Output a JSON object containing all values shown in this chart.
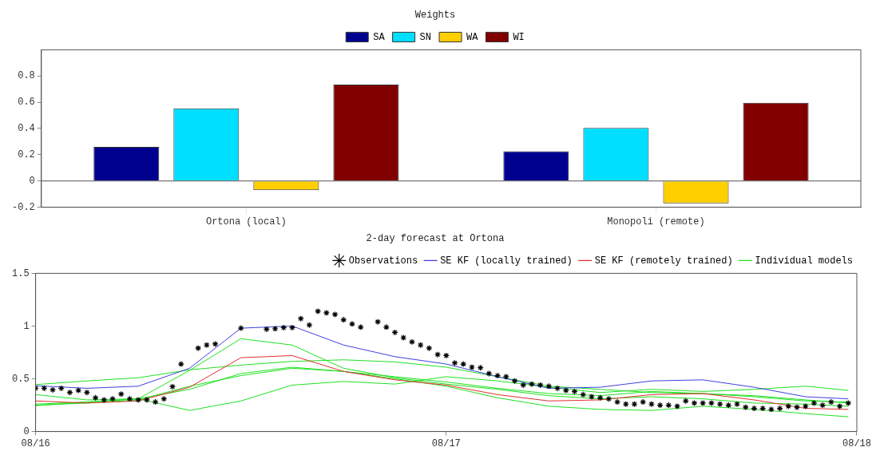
{
  "chart_data": [
    {
      "type": "bar",
      "title": "Weights",
      "categories": [
        "Ortona (local)",
        "Monopoli (remote)"
      ],
      "series": [
        {
          "name": "SA",
          "color": "#00008f",
          "values": [
            0.26,
            0.227
          ]
        },
        {
          "name": "SN",
          "color": "#00dfff",
          "values": [
            0.554,
            0.404
          ]
        },
        {
          "name": "WA",
          "color": "#ffcf00",
          "values": [
            -0.07,
            -0.17
          ]
        },
        {
          "name": "WI",
          "color": "#800000",
          "values": [
            0.735,
            0.596
          ]
        }
      ],
      "ylim": [
        -0.2,
        1.0
      ],
      "yticks": [
        -0.2,
        0,
        0.2,
        0.4,
        0.6,
        0.8
      ],
      "legend": "top"
    },
    {
      "type": "line",
      "title": "2-day forecast at Ortona",
      "xlim": [
        "--08-16",
        "--08-18"
      ],
      "xticks": [
        {
          "value": "--08-16",
          "label": "08/16"
        },
        {
          "value": "--08-17",
          "label": "08/17"
        },
        {
          "value": "--08-18",
          "label": "08/18"
        }
      ],
      "ylim": [
        0,
        1.5
      ],
      "yticks": [
        0,
        0.5,
        1,
        1.5
      ],
      "legend": "top right",
      "series": [
        {
          "name": "Observations",
          "type": "scatter",
          "marker": "cross",
          "color": "#000000",
          "x": [
            "--08-16T00:00",
            "--08-16T00:30",
            "--08-16T01:00",
            "--08-16T01:30",
            "--08-16T02:00",
            "--08-16T02:30",
            "--08-16T03:00",
            "--08-16T03:30",
            "--08-16T04:00",
            "--08-16T04:30",
            "--08-16T05:00",
            "--08-16T05:30",
            "--08-16T06:00",
            "--08-16T06:30",
            "--08-16T07:00",
            "--08-16T07:30",
            "--08-16T08:00",
            "--08-16T08:30",
            "--08-16T09:30",
            "--08-16T10:00",
            "--08-16T10:30",
            "--08-16T12:00",
            "--08-16T13:30",
            "--08-16T14:00",
            "--08-16T14:30",
            "--08-16T15:00",
            "--08-16T15:30",
            "--08-16T16:00",
            "--08-16T16:30",
            "--08-16T17:00",
            "--08-16T17:30",
            "--08-16T18:00",
            "--08-16T18:30",
            "--08-16T19:00",
            "--08-16T20:00",
            "--08-16T20:30",
            "--08-16T21:00",
            "--08-16T21:30",
            "--08-16T22:00",
            "--08-16T22:30",
            "--08-16T23:00",
            "--08-16T23:30",
            "--08-17T00:00",
            "--08-17T00:30",
            "--08-17T01:00",
            "--08-17T01:30",
            "--08-17T02:00",
            "--08-17T02:30",
            "--08-17T03:00",
            "--08-17T03:30",
            "--08-17T04:00",
            "--08-17T04:30",
            "--08-17T05:00",
            "--08-17T05:30",
            "--08-17T06:00",
            "--08-17T06:30",
            "--08-17T07:00",
            "--08-17T07:30",
            "--08-17T08:00",
            "--08-17T08:30",
            "--08-17T09:00",
            "--08-17T09:30",
            "--08-17T10:00",
            "--08-17T10:30",
            "--08-17T11:00",
            "--08-17T11:30",
            "--08-17T12:00",
            "--08-17T12:30",
            "--08-17T13:00",
            "--08-17T13:30",
            "--08-17T14:00",
            "--08-17T14:30",
            "--08-17T15:00",
            "--08-17T15:30",
            "--08-17T16:00",
            "--08-17T16:30",
            "--08-17T17:00",
            "--08-17T17:30",
            "--08-17T18:00",
            "--08-17T18:30",
            "--08-17T19:00",
            "--08-17T19:30",
            "--08-17T20:00",
            "--08-17T20:30",
            "--08-17T21:00",
            "--08-17T21:30",
            "--08-17T22:00",
            "--08-17T22:30",
            "--08-17T23:00",
            "--08-17T23:30"
          ],
          "values": [
            0.41,
            0.41,
            0.395,
            0.41,
            0.37,
            0.39,
            0.37,
            0.32,
            0.3,
            0.31,
            0.355,
            0.31,
            0.3,
            0.3,
            0.28,
            0.31,
            0.425,
            0.64,
            0.79,
            0.82,
            0.83,
            0.98,
            0.97,
            0.975,
            0.985,
            0.985,
            1.07,
            1.01,
            1.14,
            1.125,
            1.11,
            1.06,
            1.02,
            0.99,
            1.04,
            0.99,
            0.94,
            0.89,
            0.85,
            0.82,
            0.79,
            0.73,
            0.72,
            0.65,
            0.64,
            0.61,
            0.605,
            0.55,
            0.53,
            0.52,
            0.48,
            0.44,
            0.45,
            0.44,
            0.43,
            0.41,
            0.39,
            0.38,
            0.35,
            0.33,
            0.32,
            0.31,
            0.28,
            0.26,
            0.26,
            0.28,
            0.26,
            0.25,
            0.25,
            0.24,
            0.29,
            0.27,
            0.27,
            0.27,
            0.26,
            0.25,
            0.26,
            0.23,
            0.22,
            0.22,
            0.21,
            0.22,
            0.24,
            0.23,
            0.24,
            0.27,
            0.25,
            0.28,
            0.24,
            0.27
          ]
        },
        {
          "name": "SE KF (locally trained)",
          "color": "#4040e0",
          "x": [
            "--08-16T00:00",
            "--08-16T03:00",
            "--08-16T06:00",
            "--08-16T09:00",
            "--08-16T12:00",
            "--08-16T15:00",
            "--08-16T18:00",
            "--08-16T21:00",
            "--08-17T00:00",
            "--08-17T03:00",
            "--08-17T06:00",
            "--08-17T09:00",
            "--08-17T12:00",
            "--08-17T15:00",
            "--08-17T18:00",
            "--08-17T21:00",
            "--08-17T23:30"
          ],
          "values": [
            0.435,
            0.41,
            0.43,
            0.6,
            0.98,
            1.0,
            0.82,
            0.71,
            0.64,
            0.52,
            0.41,
            0.42,
            0.48,
            0.49,
            0.42,
            0.33,
            0.31
          ]
        },
        {
          "name": "SE KF (remotely trained)",
          "color": "#e03030",
          "x": [
            "--08-16T00:00",
            "--08-16T03:00",
            "--08-16T06:00",
            "--08-16T09:00",
            "--08-16T12:00",
            "--08-16T15:00",
            "--08-16T18:00",
            "--08-16T21:00",
            "--08-17T00:00",
            "--08-17T03:00",
            "--08-17T06:00",
            "--08-17T09:00",
            "--08-17T12:00",
            "--08-17T15:00",
            "--08-17T18:00",
            "--08-17T21:00",
            "--08-17T23:30"
          ],
          "values": [
            0.29,
            0.27,
            0.29,
            0.42,
            0.7,
            0.72,
            0.57,
            0.49,
            0.44,
            0.35,
            0.29,
            0.3,
            0.35,
            0.36,
            0.3,
            0.22,
            0.21
          ]
        },
        {
          "name": "Individual models",
          "color": "#20e020",
          "x": [
            "--08-16T00:00",
            "--08-16T03:00",
            "--08-16T06:00",
            "--08-16T09:00",
            "--08-16T12:00",
            "--08-16T15:00",
            "--08-16T18:00",
            "--08-16T21:00",
            "--08-17T00:00",
            "--08-17T03:00",
            "--08-17T06:00",
            "--08-17T09:00",
            "--08-17T12:00",
            "--08-17T15:00",
            "--08-17T18:00",
            "--08-17T21:00",
            "--08-17T23:30"
          ],
          "values": [
            0.445,
            0.48,
            0.51,
            0.585,
            0.63,
            0.665,
            0.68,
            0.66,
            0.61,
            0.52,
            0.43,
            0.4,
            0.37,
            0.36,
            0.33,
            0.29,
            0.28
          ]
        },
        {
          "color": "#20e020",
          "x": [
            "--08-16T00:00",
            "--08-16T03:00",
            "--08-16T06:00",
            "--08-16T09:00",
            "--08-16T12:00",
            "--08-16T15:00",
            "--08-16T18:00",
            "--08-16T21:00",
            "--08-17T00:00",
            "--08-17T03:00",
            "--08-17T06:00",
            "--08-17T09:00",
            "--08-17T12:00",
            "--08-17T15:00",
            "--08-17T18:00",
            "--08-17T21:00",
            "--08-17T23:30"
          ],
          "values": [
            0.35,
            0.3,
            0.31,
            0.58,
            0.88,
            0.82,
            0.6,
            0.51,
            0.45,
            0.4,
            0.34,
            0.31,
            0.33,
            0.31,
            0.27,
            0.26,
            0.24
          ]
        },
        {
          "color": "#20e020",
          "x": [
            "--08-16T00:00",
            "--08-16T03:00",
            "--08-16T06:00",
            "--08-16T09:00",
            "--08-16T12:00",
            "--08-16T15:00",
            "--08-16T18:00",
            "--08-16T21:00",
            "--08-17T00:00",
            "--08-17T03:00",
            "--08-17T06:00",
            "--08-17T09:00",
            "--08-17T12:00",
            "--08-17T15:00",
            "--08-17T18:00",
            "--08-17T21:00",
            "--08-17T23:30"
          ],
          "values": [
            0.26,
            0.28,
            0.31,
            0.4,
            0.55,
            0.61,
            0.57,
            0.52,
            0.47,
            0.41,
            0.36,
            0.34,
            0.38,
            0.36,
            0.34,
            0.3,
            0.27
          ]
        },
        {
          "color": "#20e020",
          "x": [
            "--08-16T00:00",
            "--08-16T03:00",
            "--08-16T06:00",
            "--08-16T09:00",
            "--08-16T12:00",
            "--08-16T15:00",
            "--08-16T18:00",
            "--08-16T21:00",
            "--08-17T00:00",
            "--08-17T03:00",
            "--08-17T06:00",
            "--08-17T09:00",
            "--08-17T12:00",
            "--08-17T15:00",
            "--08-17T18:00",
            "--08-17T21:00",
            "--08-17T23:30"
          ],
          "values": [
            0.245,
            0.28,
            0.31,
            0.2,
            0.29,
            0.44,
            0.475,
            0.45,
            0.52,
            0.48,
            0.42,
            0.37,
            0.4,
            0.38,
            0.4,
            0.43,
            0.39
          ]
        },
        {
          "color": "#20e020",
          "x": [
            "--08-16T00:00",
            "--08-16T03:00",
            "--08-16T06:00",
            "--08-16T09:00",
            "--08-16T12:00",
            "--08-16T15:00",
            "--08-16T18:00",
            "--08-16T21:00",
            "--08-17T00:00",
            "--08-17T03:00",
            "--08-17T06:00",
            "--08-17T09:00",
            "--08-17T12:00",
            "--08-17T15:00",
            "--08-17T18:00",
            "--08-17T21:00",
            "--08-17T23:30"
          ],
          "values": [
            0.25,
            0.27,
            0.3,
            0.43,
            0.53,
            0.6,
            0.57,
            0.5,
            0.43,
            0.32,
            0.24,
            0.21,
            0.2,
            0.24,
            0.21,
            0.17,
            0.14
          ]
        }
      ]
    }
  ]
}
